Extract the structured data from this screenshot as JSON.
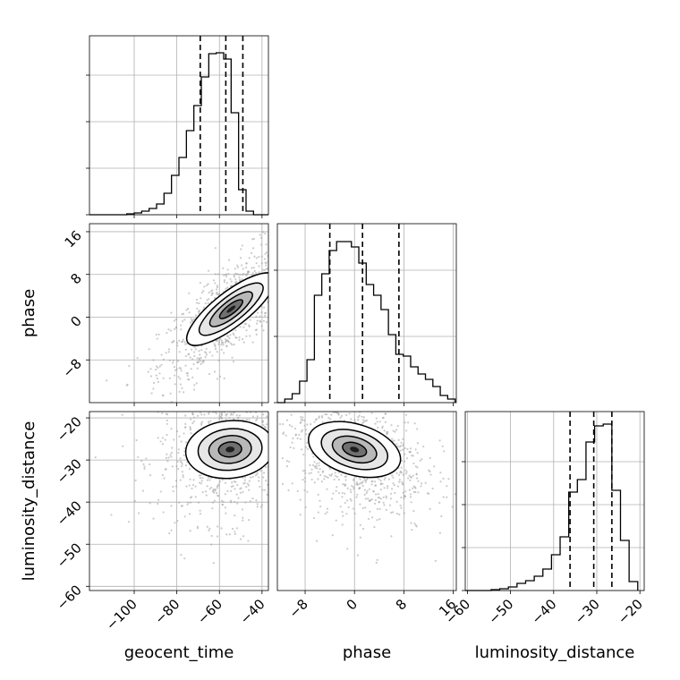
{
  "chart_data": {
    "type": "corner",
    "parameters": [
      "geocent_time",
      "phase",
      "luminosity_distance"
    ],
    "grid": true,
    "quantile_levels": [
      0.16,
      0.5,
      0.84
    ],
    "line_color": "#000000",
    "point_color": "#a0a0a0",
    "panels": [
      {
        "id": "hist_geocent_time",
        "kind": "histogram",
        "parameter": "geocent_time",
        "xlim": [
          -121,
          -37
        ],
        "xticks": [
          -100,
          -80,
          -60,
          -40
        ],
        "xtick_labels": [
          "−100",
          "−80",
          "−60",
          "−40"
        ],
        "ylim": [
          0,
          1
        ],
        "yticks": [
          0.0,
          0.26,
          0.52,
          0.78
        ],
        "bin_edges": [
          -121,
          -117.5,
          -114,
          -110.5,
          -107,
          -103.5,
          -100,
          -96.5,
          -93,
          -89.5,
          -86,
          -82.5,
          -79,
          -75.5,
          -72,
          -68.5,
          -65,
          -61.5,
          -58,
          -54.5,
          -51,
          -47.5,
          -44,
          -40.5,
          -37
        ],
        "counts": [
          0,
          0,
          0,
          0,
          0,
          0.005,
          0.01,
          0.02,
          0.035,
          0.06,
          0.12,
          0.22,
          0.32,
          0.47,
          0.61,
          0.77,
          0.9,
          0.905,
          0.87,
          0.57,
          0.14,
          0.02,
          0,
          0
        ],
        "quantiles": [
          -69,
          -57,
          -49
        ]
      },
      {
        "id": "hist_phase",
        "kind": "histogram",
        "parameter": "phase",
        "xlim": [
          -12.5,
          16.5
        ],
        "xticks": [
          -8,
          0,
          8,
          16
        ],
        "xtick_labels": [
          "−8",
          "0",
          "8",
          "16"
        ],
        "ylim": [
          0,
          1
        ],
        "yticks": [
          0.0,
          0.37,
          0.74
        ],
        "bin_edges": [
          -12.5,
          -11.3,
          -10.1,
          -8.9,
          -7.7,
          -6.5,
          -5.3,
          -4.1,
          -2.9,
          -1.7,
          -0.5,
          0.7,
          1.9,
          3.1,
          4.3,
          5.5,
          6.7,
          7.9,
          9.1,
          10.3,
          11.5,
          12.7,
          13.9,
          15.1,
          16.3
        ],
        "counts": [
          0,
          0.02,
          0.05,
          0.12,
          0.24,
          0.6,
          0.72,
          0.85,
          0.9,
          0.9,
          0.87,
          0.78,
          0.66,
          0.6,
          0.52,
          0.38,
          0.27,
          0.26,
          0.2,
          0.16,
          0.13,
          0.09,
          0.04,
          0.02
        ],
        "quantiles": [
          -4,
          1.3,
          7.2
        ]
      },
      {
        "id": "hist_luminosity_distance",
        "kind": "histogram",
        "parameter": "luminosity_distance",
        "xlim": [
          -60.5,
          -19
        ],
        "xticks": [
          -60,
          -50,
          -40,
          -30,
          -20
        ],
        "xtick_labels": [
          "−60",
          "−50",
          "−40",
          "−30",
          "−20"
        ],
        "ylim": [
          0,
          1
        ],
        "yticks": [
          0.0,
          0.24,
          0.48,
          0.72
        ],
        "bin_edges": [
          -60.5,
          -58.5,
          -56.5,
          -54.5,
          -52.5,
          -50.5,
          -48.5,
          -46.5,
          -44.5,
          -42.5,
          -40.5,
          -38.5,
          -36.5,
          -34.5,
          -32.5,
          -30.5,
          -28.5,
          -26.5,
          -24.5,
          -22.5,
          -20.5
        ],
        "counts": [
          0,
          0,
          0,
          0.005,
          0.01,
          0.02,
          0.04,
          0.055,
          0.08,
          0.12,
          0.2,
          0.3,
          0.55,
          0.62,
          0.83,
          0.92,
          0.93,
          0.56,
          0.28,
          0.05
        ],
        "quantiles": [
          -36.2,
          -30.7,
          -26.5
        ]
      },
      {
        "id": "density_phase_vs_geocent_time",
        "kind": "density",
        "x": "geocent_time",
        "y": "phase",
        "xlim": [
          -121,
          -37
        ],
        "ylim": [
          -16,
          17.5
        ],
        "yticks": [
          -8,
          0,
          8,
          16
        ],
        "ytick_labels": [
          "−8",
          "0",
          "8",
          "16"
        ],
        "center": [
          -54.5,
          1.5
        ],
        "correlation": 0.78
      },
      {
        "id": "density_luminosity_distance_vs_geocent_time",
        "kind": "density",
        "x": "geocent_time",
        "y": "luminosity_distance",
        "xlim": [
          -121,
          -37
        ],
        "ylim": [
          -61,
          -18.5
        ],
        "yticks": [
          -20,
          -30,
          -40,
          -50,
          -60
        ],
        "ytick_labels": [
          "−20",
          "−30",
          "−40",
          "−50",
          "−60"
        ],
        "center": [
          -55,
          -27.5
        ],
        "correlation": 0.1
      },
      {
        "id": "density_luminosity_distance_vs_phase",
        "kind": "density",
        "x": "phase",
        "y": "luminosity_distance",
        "xlim": [
          -12.5,
          16.5
        ],
        "ylim": [
          -61,
          -18.5
        ],
        "center": [
          0,
          -27.5
        ],
        "correlation": -0.3
      }
    ]
  }
}
